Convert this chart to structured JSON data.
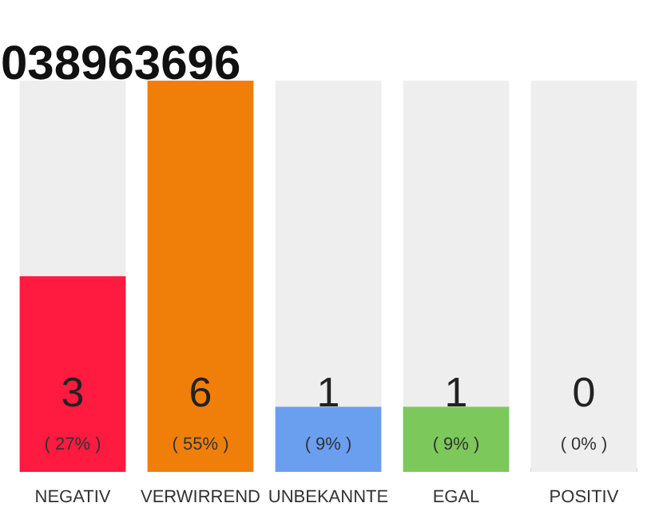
{
  "chart_data": {
    "type": "bar",
    "title": "038963696",
    "categories": [
      "NEGATIV",
      "VERWIRREND",
      "UNBEKANNTE",
      "EGAL",
      "POSITIV"
    ],
    "stacked": true,
    "ylim": [
      0,
      6
    ],
    "tick_labels": "x",
    "grid": false,
    "series": [
      {
        "colors": [
          "#ff1a40",
          "#f07f0a",
          "#6a9ff0",
          "#7cc85a",
          "#2bb24c"
        ],
        "values": [
          3,
          6,
          1,
          1,
          0
        ],
        "value_labels": [
          "3",
          "6",
          "1",
          "1",
          "0"
        ]
      },
      {
        "color": "#eeeeee",
        "values": [
          3,
          0,
          5,
          5,
          6
        ]
      }
    ],
    "annotations": [
      "( 27% )",
      "( 55% )",
      "( 9% )",
      "( 9% )",
      "( 0% )"
    ]
  }
}
